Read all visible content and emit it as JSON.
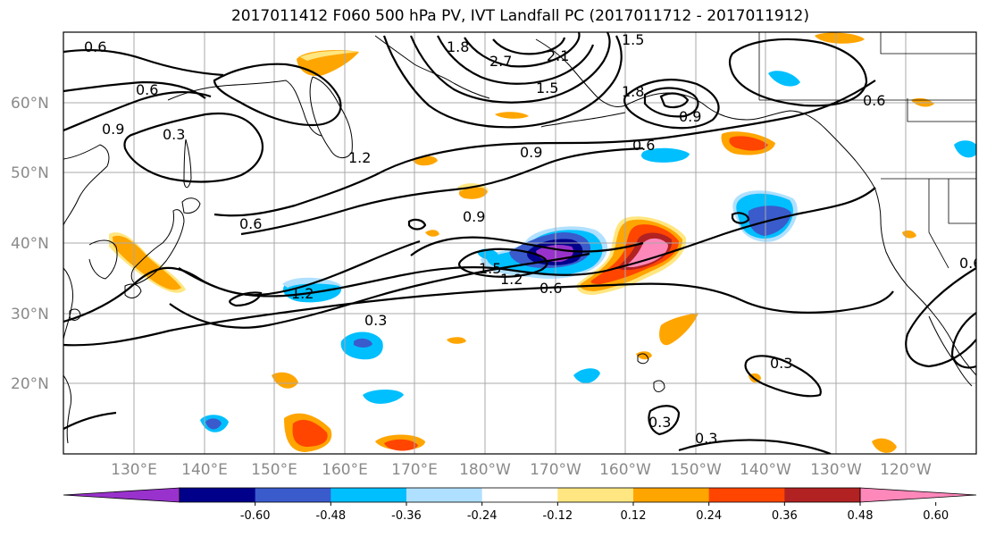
{
  "title": "2017011412 F060 500 hPa PV, IVT Landfall PC (2017011712 - 2017011912)",
  "lat_labels": [
    "60°N",
    "50°N",
    "40°N",
    "30°N",
    "20°N"
  ],
  "lon_labels": [
    "130°E",
    "140°E",
    "150°E",
    "160°E",
    "170°E",
    "180°W",
    "170°W",
    "160°W",
    "150°W",
    "140°W",
    "130°W",
    "120°W"
  ],
  "colorbar": {
    "ticks": [
      "-0.60",
      "-0.48",
      "-0.36",
      "-0.24",
      "-0.12",
      "0.12",
      "0.24",
      "0.36",
      "0.48",
      "0.60"
    ],
    "colors": [
      "#9932cc",
      "#00008b",
      "#3a5bcc",
      "#00bfff",
      "#b0e0ff",
      "#ffffff",
      "#ffe680",
      "#ffa500",
      "#ff4500",
      "#b22222",
      "#ff88bb"
    ]
  },
  "contour_labels": [
    "0.6",
    "0.6",
    "0.9",
    "0.3",
    "1.2",
    "0.6",
    "0.9",
    "0.6",
    "0.9",
    "1.5",
    "1.2",
    "0.6",
    "1.2",
    "0.3",
    "0.3",
    "0.3",
    "0.3",
    "0.6",
    "1.5",
    "1.8",
    "2.7",
    "2.1",
    "1.5",
    "1.8",
    "0.6",
    "0.9"
  ],
  "shading_colors": {
    "purple": "#9932cc",
    "navy": "#00008b",
    "blue": "#3a5bcc",
    "cyan": "#00bfff",
    "lightblue": "#b0e0ff",
    "yellow": "#ffe680",
    "orange": "#ffa500",
    "red": "#ff4500",
    "darkred": "#b22222",
    "pink": "#ff88bb"
  }
}
